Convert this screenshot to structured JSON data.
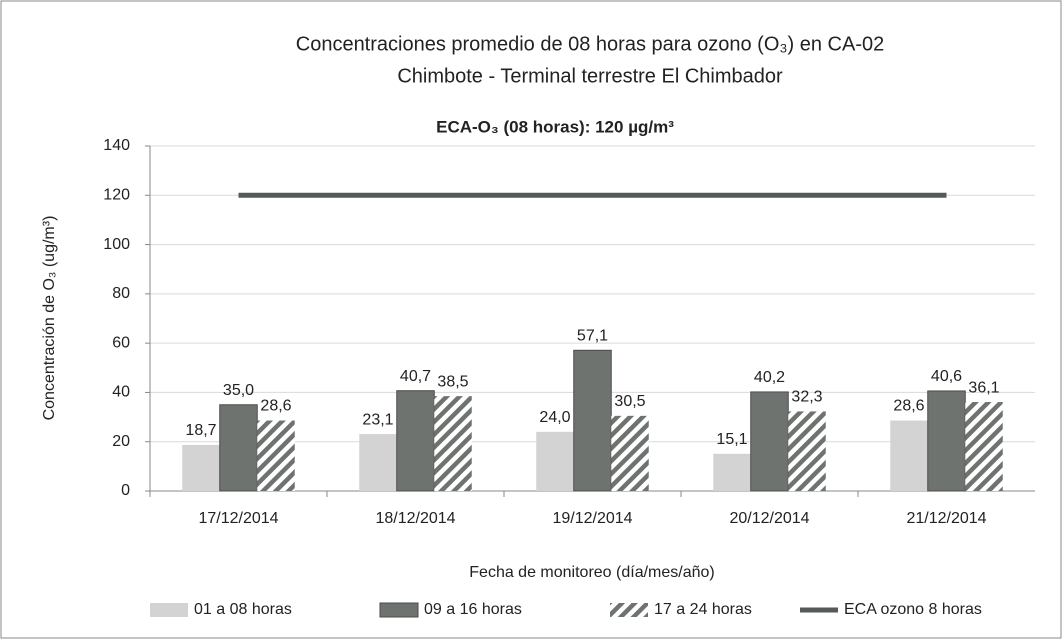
{
  "chart_data": {
    "type": "bar",
    "title": [
      "Concentraciones promedio de 08 horas para ozono (O₃) en CA-02",
      "Chimbote - Terminal terrestre El Chimbador"
    ],
    "x_label": "Fecha de monitoreo (día/mes/año)",
    "y_label": "Concentración de O₃ (ug/m³)",
    "annotation": "ECA-O₃ (08 horas): 120 µg/m³",
    "categories": [
      "17/12/2014",
      "18/12/2014",
      "19/12/2014",
      "20/12/2014",
      "21/12/2014"
    ],
    "series": [
      {
        "name": "01 a 08 horas",
        "color": "#d3d3d3",
        "pattern": "solid",
        "values": [
          18.7,
          23.1,
          24.0,
          15.1,
          28.6
        ],
        "value_labels": [
          "18,7",
          "23,1",
          "24,0",
          "15,1",
          "28,6"
        ]
      },
      {
        "name": "09 a 16 horas",
        "color": "#6f7370",
        "pattern": "solid",
        "values": [
          35.0,
          40.7,
          57.1,
          40.2,
          40.6
        ],
        "value_labels": [
          "35,0",
          "40,7",
          "57,1",
          "40,2",
          "40,6"
        ]
      },
      {
        "name": "17 a 24 horas",
        "color": "#6f7370",
        "pattern": "hatch",
        "values": [
          28.6,
          38.5,
          30.5,
          32.3,
          36.1
        ],
        "value_labels": [
          "28,6",
          "38,5",
          "30,5",
          "32,3",
          "36,1"
        ]
      },
      {
        "name": "ECA ozono 8 horas",
        "color": "#555a57",
        "kind": "line",
        "values": [
          120,
          120,
          120,
          120,
          120
        ]
      }
    ],
    "ylim": [
      0,
      140
    ],
    "yticks": [
      0,
      20,
      40,
      60,
      80,
      100,
      120,
      140
    ],
    "grid": true
  }
}
